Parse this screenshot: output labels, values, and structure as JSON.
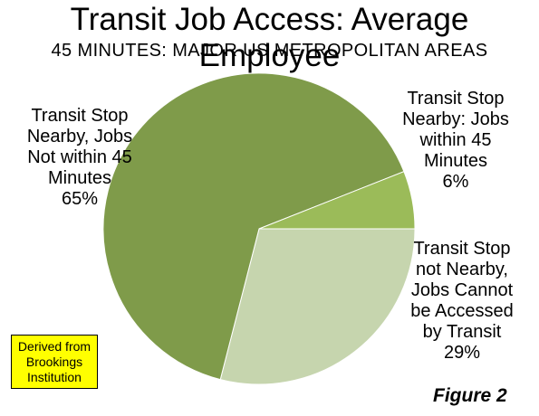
{
  "header": {
    "title": "Transit Job Access: Average Employee",
    "subtitle": "45 MINUTES: MAJOR US METROPOLITAN AREAS"
  },
  "chart_data": {
    "type": "pie",
    "slices": [
      {
        "name": "Transit Stop not Nearby, Jobs Cannot be Accessed by Transit",
        "value": 29,
        "label": "29%",
        "color": "#c6d5ae"
      },
      {
        "name": "Transit Stop Nearby, Jobs Not within 45 Minutes",
        "value": 65,
        "label": "65%",
        "color": "#7f9b4a"
      },
      {
        "name": "Transit Stop Nearby: Jobs within 45 Minutes",
        "value": 6,
        "label": "6%",
        "color": "#9bbb59"
      }
    ],
    "start": "3 o'clock",
    "direction": "clockwise"
  },
  "labels": {
    "big_lines": [
      "Transit Stop",
      "Nearby, Jobs",
      "Not within 45",
      "Minutes",
      "65%"
    ],
    "small_lines": [
      "Transit Stop",
      "Nearby: Jobs",
      "within 45",
      "Minutes",
      "6%"
    ],
    "light_lines": [
      "Transit Stop",
      "not Nearby,",
      "Jobs Cannot",
      "be Accessed",
      "by Transit",
      "29%"
    ]
  },
  "source_note": [
    "Derived from",
    "Brookings",
    "Institution"
  ],
  "figure_label": "Figure 2"
}
